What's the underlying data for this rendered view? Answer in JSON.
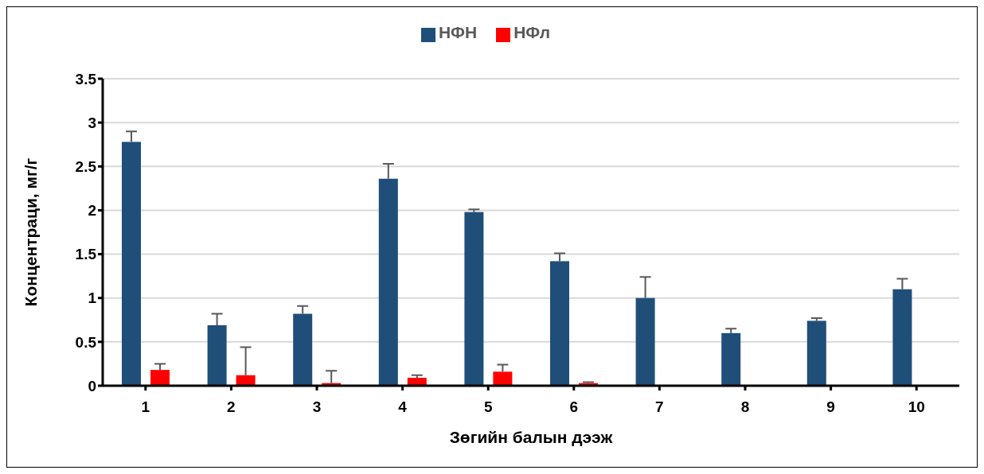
{
  "chart_data": {
    "type": "bar",
    "xlabel": "Зөгийн балын дээж",
    "ylabel": "Концентраци, мг/г",
    "categories": [
      "1",
      "2",
      "3",
      "4",
      "5",
      "6",
      "7",
      "8",
      "9",
      "10"
    ],
    "series": [
      {
        "name": "НФН",
        "color": "#1f4e79",
        "values": [
          2.78,
          0.69,
          0.82,
          2.36,
          1.98,
          1.42,
          1.0,
          0.6,
          0.74,
          1.1
        ],
        "errors": [
          [
            2.78,
            2.9
          ],
          [
            0.69,
            0.82
          ],
          [
            0.82,
            0.91
          ],
          [
            2.36,
            2.53
          ],
          [
            1.98,
            2.01
          ],
          [
            1.42,
            1.51
          ],
          [
            1.0,
            1.24
          ],
          [
            0.6,
            0.65
          ],
          [
            0.74,
            0.77
          ],
          [
            1.1,
            1.22
          ]
        ]
      },
      {
        "name": "НФл",
        "color": "#ff0000",
        "values": [
          0.18,
          0.12,
          0.03,
          0.09,
          0.16,
          0.03,
          0,
          0,
          0,
          null
        ],
        "errors": [
          [
            0.18,
            0.25
          ],
          [
            0.12,
            0.44
          ],
          [
            0.03,
            0.17
          ],
          [
            0.09,
            0.12
          ],
          [
            0.16,
            0.24
          ],
          [
            0.03,
            0.04
          ],
          null,
          null,
          null,
          null
        ]
      }
    ],
    "ylim": [
      0,
      3.5
    ],
    "yticks": [
      0,
      0.5,
      1,
      1.5,
      2,
      2.5,
      3,
      3.5
    ],
    "grid": "y",
    "legend": "top"
  }
}
